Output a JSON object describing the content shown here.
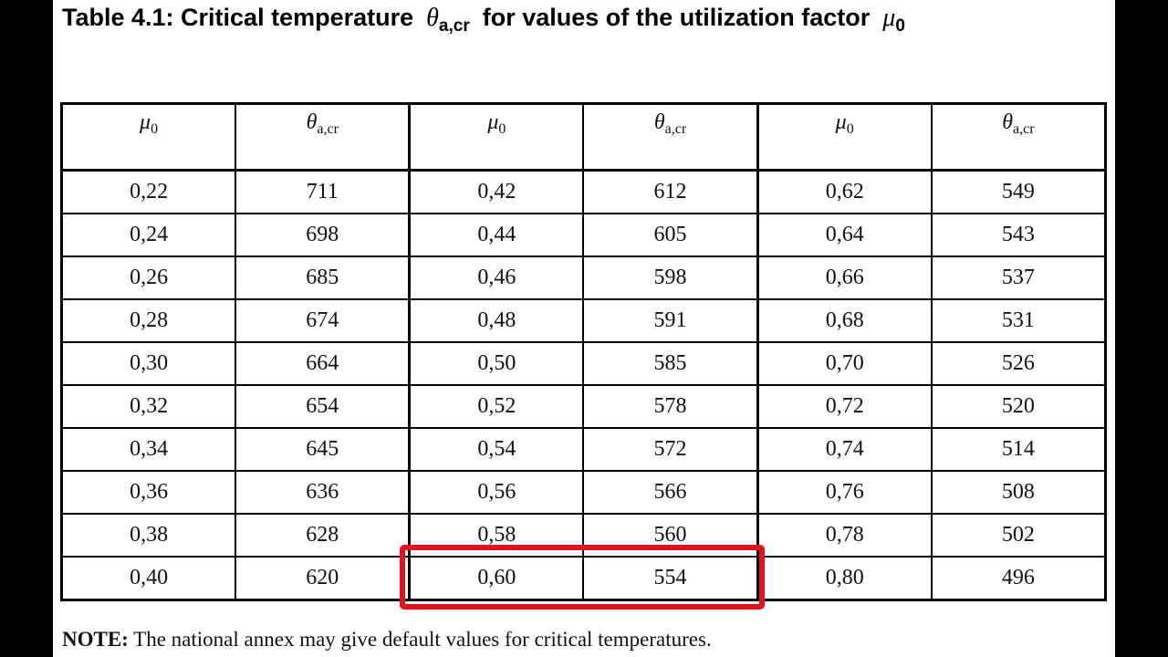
{
  "title": {
    "prefix": "Table 4.1:  Critical temperature",
    "theta": "θ",
    "theta_sub": "a,cr",
    "middle": "for values of the utilization factor",
    "mu": "μ",
    "mu_sub": "0"
  },
  "table": {
    "headers": [
      {
        "sym": "μ",
        "sub": "0"
      },
      {
        "sym": "θ",
        "sub": "a,cr"
      },
      {
        "sym": "μ",
        "sub": "0"
      },
      {
        "sym": "θ",
        "sub": "a,cr"
      },
      {
        "sym": "μ",
        "sub": "0"
      },
      {
        "sym": "θ",
        "sub": "a,cr"
      }
    ],
    "rows": [
      [
        "0,22",
        "711",
        "0,42",
        "612",
        "0,62",
        "549"
      ],
      [
        "0,24",
        "698",
        "0,44",
        "605",
        "0,64",
        "543"
      ],
      [
        "0,26",
        "685",
        "0,46",
        "598",
        "0,66",
        "537"
      ],
      [
        "0,28",
        "674",
        "0,48",
        "591",
        "0,68",
        "531"
      ],
      [
        "0,30",
        "664",
        "0,50",
        "585",
        "0,70",
        "526"
      ],
      [
        "0,32",
        "654",
        "0,52",
        "578",
        "0,72",
        "520"
      ],
      [
        "0,34",
        "645",
        "0,54",
        "572",
        "0,74",
        "514"
      ],
      [
        "0,36",
        "636",
        "0,56",
        "566",
        "0,76",
        "508"
      ],
      [
        "0,38",
        "628",
        "0,58",
        "560",
        "0,78",
        "502"
      ],
      [
        "0,40",
        "620",
        "0,60",
        "554",
        "0,80",
        "496"
      ]
    ],
    "highlighted": {
      "row": 9,
      "cols": [
        2,
        3
      ],
      "color": "#e0141e"
    }
  },
  "note": {
    "label": "NOTE:",
    "text": " The national annex may give default values for critical temperatures."
  }
}
